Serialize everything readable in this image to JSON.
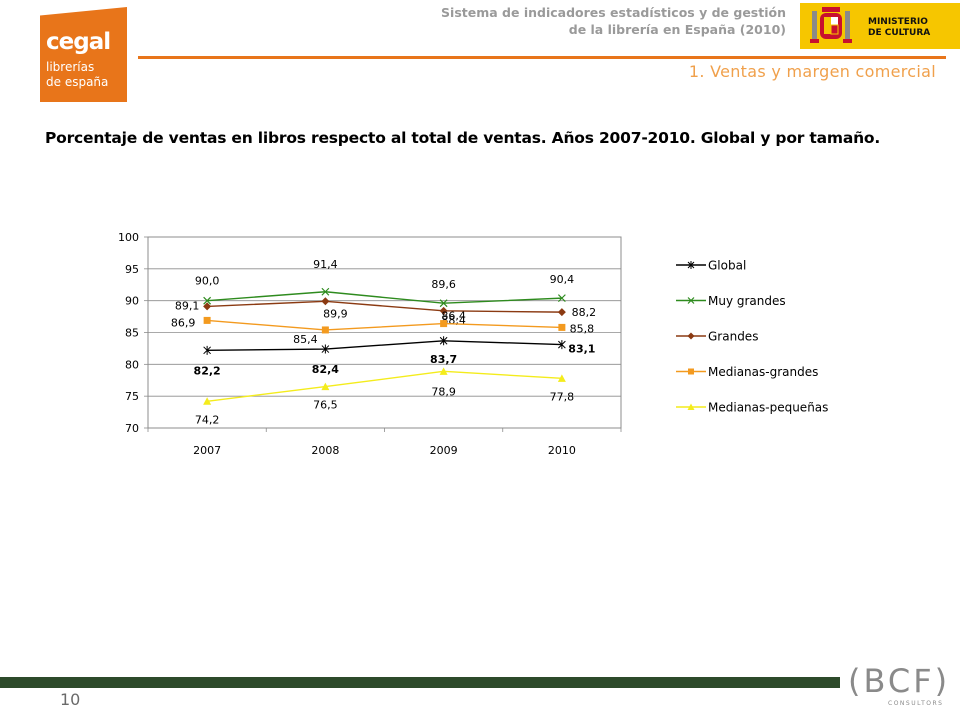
{
  "header": {
    "logo": {
      "brand": "cegal",
      "line1": "librerías",
      "line2": "de españa"
    },
    "subtitle_line1": "Sistema de indicadores estadísticos y de gestión",
    "subtitle_line2": "de la librería en España (2010)",
    "section": "1. Ventas y margen comercial",
    "ministry": {
      "line1": "MINISTERIO",
      "line2": "DE CULTURA"
    }
  },
  "page_heading": "Porcentaje de ventas en libros respecto al total de ventas. Años 2007-2010. Global y por tamaño.",
  "chart_data": {
    "type": "line",
    "title": "",
    "xlabel": "",
    "ylabel": "",
    "categories": [
      "2007",
      "2008",
      "2009",
      "2010"
    ],
    "ylim": [
      70,
      100
    ],
    "yticks": [
      "70",
      "75",
      "80",
      "85",
      "90",
      "95",
      "100"
    ],
    "grid": true,
    "legend_position": "right",
    "series": [
      {
        "name": "Global",
        "values": [
          82.2,
          82.4,
          83.7,
          83.1
        ],
        "labels": [
          "82,2",
          "82,4",
          "83,7",
          "83,1"
        ],
        "color": "#000000",
        "marker": "star"
      },
      {
        "name": "Muy grandes",
        "values": [
          90.0,
          91.4,
          89.6,
          90.4
        ],
        "labels": [
          "90,0",
          "91,4",
          "89,6",
          "90,4"
        ],
        "color": "#2e8b1e",
        "marker": "x"
      },
      {
        "name": "Grandes",
        "values": [
          89.1,
          89.9,
          88.4,
          88.2
        ],
        "labels": [
          "89,1",
          "89,9",
          "88,4",
          "88,2"
        ],
        "color": "#8b3a12",
        "marker": "diamond"
      },
      {
        "name": "Medianas-grandes",
        "values": [
          86.9,
          85.4,
          86.4,
          85.8
        ],
        "labels": [
          "86,9",
          "85,4",
          "86,4",
          "85,8"
        ],
        "color": "#f39a1f",
        "marker": "square"
      },
      {
        "name": "Medianas-pequeñas",
        "values": [
          74.2,
          76.5,
          78.9,
          77.8
        ],
        "labels": [
          "74,2",
          "76,5",
          "78,9",
          "77,8"
        ],
        "color": "#f4ec1c",
        "marker": "triangle"
      }
    ]
  },
  "footer": {
    "page_number": "10",
    "bcf": {
      "mark": "(BCF)",
      "sub": "CONSULTORS"
    }
  }
}
